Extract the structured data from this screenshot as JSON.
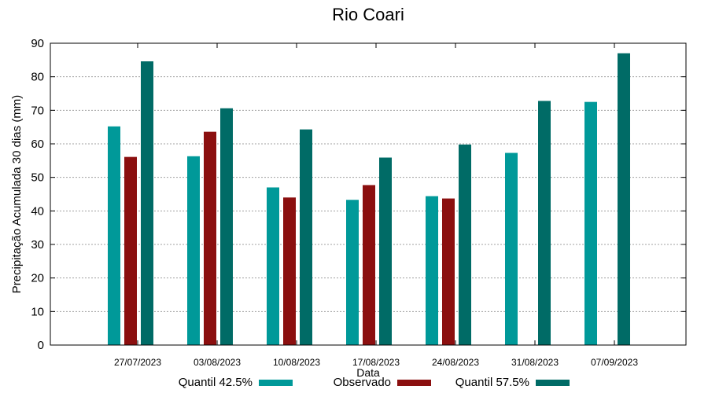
{
  "chart_data": {
    "type": "bar",
    "title": "Rio Coari",
    "xlabel": "Data",
    "ylabel": "Precipitação Acumulada 30 dias (mm)",
    "ylim": [
      0,
      90
    ],
    "yticks": [
      0,
      10,
      20,
      30,
      40,
      50,
      60,
      70,
      80,
      90
    ],
    "grid": true,
    "categories": [
      "27/07/2023",
      "03/08/2023",
      "10/08/2023",
      "17/08/2023",
      "24/08/2023",
      "31/08/2023",
      "07/09/2023"
    ],
    "series": [
      {
        "name": "Quantil 42.5%",
        "color": "#009999",
        "values": [
          65.2,
          56.3,
          47.0,
          43.3,
          44.4,
          57.3,
          72.5
        ]
      },
      {
        "name": "Observado",
        "color": "#8b0f0f",
        "values": [
          56.1,
          63.6,
          44.0,
          47.7,
          43.7,
          null,
          null
        ]
      },
      {
        "name": "Quantil 57.5%",
        "color": "#006b66",
        "values": [
          84.6,
          70.6,
          64.3,
          55.9,
          59.8,
          72.8,
          87.0
        ]
      }
    ],
    "legend_position": "bottom"
  }
}
